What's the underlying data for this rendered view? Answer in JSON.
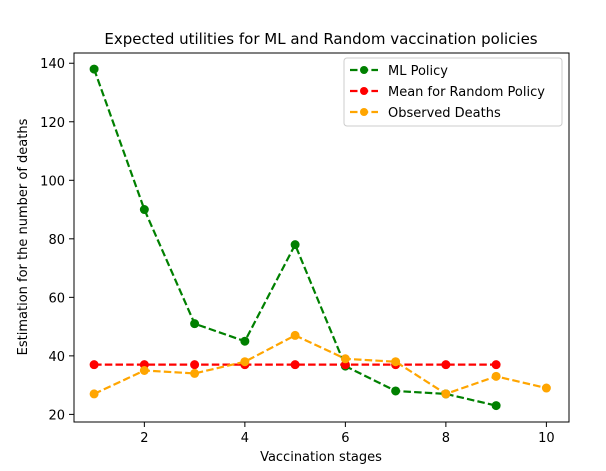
{
  "chart_data": {
    "type": "line",
    "title": "Expected utilities for ML and Random vaccination policies",
    "xlabel": "Vaccination stages",
    "ylabel": "Estimation for the number of deaths",
    "xlim": [
      0.6,
      10.45
    ],
    "ylim": [
      17.4,
      143.5
    ],
    "xticks": [
      2,
      4,
      6,
      8,
      10
    ],
    "yticks": [
      20,
      40,
      60,
      80,
      100,
      120,
      140
    ],
    "grid": false,
    "legend_position": "top-right",
    "series": [
      {
        "name": "ML Policy",
        "color": "#008000",
        "x": [
          1,
          2,
          3,
          4,
          5,
          6,
          7,
          8,
          9
        ],
        "y": [
          138,
          90,
          51,
          45,
          78,
          36.5,
          28,
          27,
          23
        ]
      },
      {
        "name": "Mean for Random Policy",
        "color": "#ff0000",
        "x": [
          1,
          2,
          3,
          4,
          5,
          6,
          7,
          8,
          9
        ],
        "y": [
          37,
          37,
          37,
          37,
          37,
          37,
          37,
          37,
          37
        ]
      },
      {
        "name": "Observed Deaths",
        "color": "#ffa500",
        "x": [
          1,
          2,
          3,
          4,
          5,
          6,
          7,
          8,
          9,
          10
        ],
        "y": [
          27,
          35,
          34,
          38,
          47,
          39,
          38,
          27,
          33,
          29
        ]
      }
    ]
  }
}
